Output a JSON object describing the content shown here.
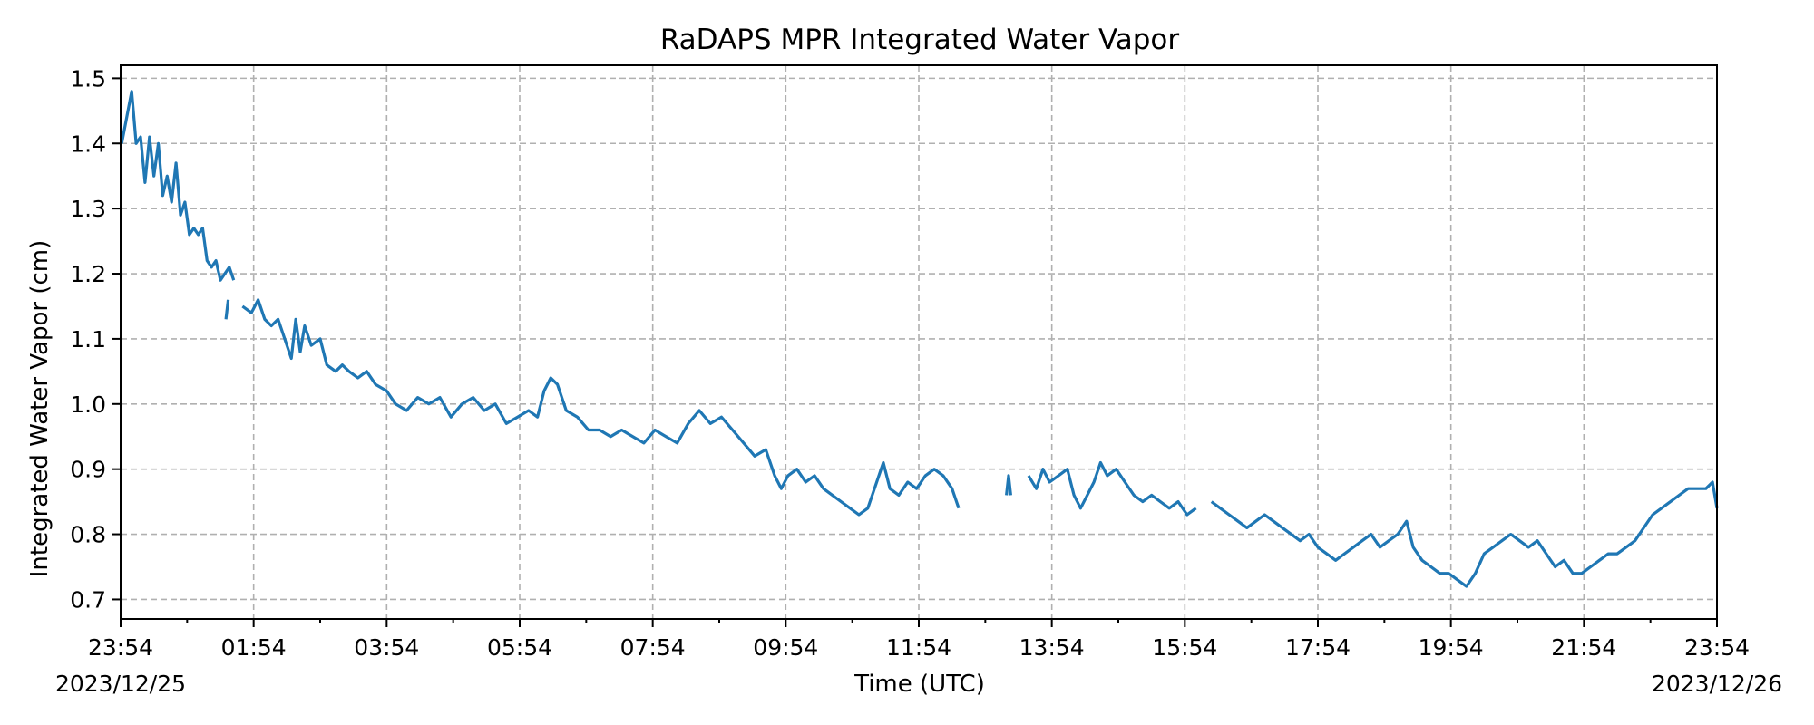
{
  "chart_data": {
    "type": "line",
    "title": "RaDAPS MPR Integrated Water Vapor",
    "xlabel": "Time (UTC)",
    "ylabel": "Integrated Water Vapor (cm)",
    "x_range": [
      "2023-12-25T23:54",
      "2023-12-26T23:54"
    ],
    "ylim": [
      0.67,
      1.52
    ],
    "grid": true,
    "line_color": "#1f77b4",
    "x_ticks": [
      {
        "label": "23:54",
        "sublabel": "2023/12/25",
        "t": "2023-12-25T23:54"
      },
      {
        "label": "01:54",
        "t": "2023-12-26T01:54"
      },
      {
        "label": "03:54",
        "t": "2023-12-26T03:54"
      },
      {
        "label": "05:54",
        "t": "2023-12-26T05:54"
      },
      {
        "label": "07:54",
        "t": "2023-12-26T07:54"
      },
      {
        "label": "09:54",
        "t": "2023-12-26T09:54"
      },
      {
        "label": "11:54",
        "t": "2023-12-26T11:54"
      },
      {
        "label": "13:54",
        "t": "2023-12-26T13:54"
      },
      {
        "label": "15:54",
        "t": "2023-12-26T15:54"
      },
      {
        "label": "17:54",
        "t": "2023-12-26T17:54"
      },
      {
        "label": "19:54",
        "t": "2023-12-26T19:54"
      },
      {
        "label": "21:54",
        "t": "2023-12-26T21:54"
      },
      {
        "label": "23:54",
        "sublabel": "2023/12/26",
        "t": "2023-12-26T23:54"
      }
    ],
    "y_ticks": [
      {
        "label": "0.7",
        "value": 0.7
      },
      {
        "label": "0.8",
        "value": 0.8
      },
      {
        "label": "0.9",
        "value": 0.9
      },
      {
        "label": "1.0",
        "value": 1.0
      },
      {
        "label": "1.1",
        "value": 1.1
      },
      {
        "label": "1.2",
        "value": 1.2
      },
      {
        "label": "1.3",
        "value": 1.3
      },
      {
        "label": "1.4",
        "value": 1.4
      },
      {
        "label": "1.5",
        "value": 1.5
      }
    ],
    "segments": [
      {
        "points": [
          [
            "2023-12-25T23:55",
            1.4
          ],
          [
            "2023-12-25T24:04",
            1.48
          ],
          [
            "2023-12-25T24:08",
            1.4
          ],
          [
            "2023-12-25T24:12",
            1.41
          ],
          [
            "2023-12-25T24:16",
            1.34
          ],
          [
            "2023-12-25T24:20",
            1.41
          ],
          [
            "2023-12-25T24:24",
            1.35
          ],
          [
            "2023-12-25T24:28",
            1.4
          ],
          [
            "2023-12-25T24:32",
            1.32
          ],
          [
            "2023-12-25T24:36",
            1.35
          ],
          [
            "2023-12-25T24:40",
            1.31
          ],
          [
            "2023-12-25T24:44",
            1.37
          ],
          [
            "2023-12-25T24:48",
            1.29
          ],
          [
            "2023-12-25T24:52",
            1.31
          ],
          [
            "2023-12-25T24:56",
            1.26
          ],
          [
            "2023-12-25T25:00",
            1.27
          ],
          [
            "2023-12-25T25:04",
            1.26
          ],
          [
            "2023-12-25T25:08",
            1.27
          ],
          [
            "2023-12-25T25:12",
            1.22
          ],
          [
            "2023-12-25T25:16",
            1.21
          ],
          [
            "2023-12-25T25:20",
            1.22
          ],
          [
            "2023-12-25T25:24",
            1.19
          ],
          [
            "2023-12-25T25:28",
            1.2
          ],
          [
            "2023-12-25T25:32",
            1.21
          ],
          [
            "2023-12-25T25:36",
            1.19
          ]
        ]
      },
      {
        "points": [
          [
            "2023-12-26T01:29",
            1.13
          ],
          [
            "2023-12-26T01:31",
            1.16
          ]
        ]
      },
      {
        "points": [
          [
            "2023-12-26T01:44",
            1.15
          ],
          [
            "2023-12-26T01:52",
            1.14
          ],
          [
            "2023-12-26T01:58",
            1.16
          ],
          [
            "2023-12-26T02:04",
            1.13
          ],
          [
            "2023-12-26T02:10",
            1.12
          ],
          [
            "2023-12-26T02:16",
            1.13
          ],
          [
            "2023-12-26T02:22",
            1.1
          ],
          [
            "2023-12-26T02:28",
            1.07
          ],
          [
            "2023-12-26T02:32",
            1.13
          ],
          [
            "2023-12-26T02:36",
            1.08
          ],
          [
            "2023-12-26T02:40",
            1.12
          ],
          [
            "2023-12-26T02:46",
            1.09
          ],
          [
            "2023-12-26T02:54",
            1.1
          ],
          [
            "2023-12-26T03:00",
            1.06
          ],
          [
            "2023-12-26T03:08",
            1.05
          ],
          [
            "2023-12-26T03:14",
            1.06
          ],
          [
            "2023-12-26T03:20",
            1.05
          ],
          [
            "2023-12-26T03:28",
            1.04
          ],
          [
            "2023-12-26T03:36",
            1.05
          ],
          [
            "2023-12-26T03:44",
            1.03
          ],
          [
            "2023-12-26T03:54",
            1.02
          ],
          [
            "2023-12-26T04:02",
            1.0
          ],
          [
            "2023-12-26T04:12",
            0.99
          ],
          [
            "2023-12-26T04:22",
            1.01
          ],
          [
            "2023-12-26T04:32",
            1.0
          ],
          [
            "2023-12-26T04:42",
            1.01
          ],
          [
            "2023-12-26T04:52",
            0.98
          ],
          [
            "2023-12-26T05:02",
            1.0
          ],
          [
            "2023-12-26T05:12",
            1.01
          ],
          [
            "2023-12-26T05:22",
            0.99
          ],
          [
            "2023-12-26T05:32",
            1.0
          ],
          [
            "2023-12-26T05:42",
            0.97
          ],
          [
            "2023-12-26T05:52",
            0.98
          ],
          [
            "2023-12-26T06:02",
            0.99
          ],
          [
            "2023-12-26T06:10",
            0.98
          ],
          [
            "2023-12-26T06:16",
            1.02
          ],
          [
            "2023-12-26T06:22",
            1.04
          ],
          [
            "2023-12-26T06:28",
            1.03
          ],
          [
            "2023-12-26T06:36",
            0.99
          ],
          [
            "2023-12-26T06:46",
            0.98
          ],
          [
            "2023-12-26T06:56",
            0.96
          ],
          [
            "2023-12-26T07:06",
            0.96
          ],
          [
            "2023-12-26T07:16",
            0.95
          ],
          [
            "2023-12-26T07:26",
            0.96
          ],
          [
            "2023-12-26T07:36",
            0.95
          ],
          [
            "2023-12-26T07:46",
            0.94
          ],
          [
            "2023-12-26T07:56",
            0.96
          ],
          [
            "2023-12-26T08:06",
            0.95
          ],
          [
            "2023-12-26T08:16",
            0.94
          ],
          [
            "2023-12-26T08:26",
            0.97
          ],
          [
            "2023-12-26T08:36",
            0.99
          ],
          [
            "2023-12-26T08:46",
            0.97
          ],
          [
            "2023-12-26T08:56",
            0.98
          ],
          [
            "2023-12-26T09:06",
            0.96
          ],
          [
            "2023-12-26T09:16",
            0.94
          ],
          [
            "2023-12-26T09:26",
            0.92
          ],
          [
            "2023-12-26T09:36",
            0.93
          ],
          [
            "2023-12-26T09:44",
            0.89
          ],
          [
            "2023-12-26T09:50",
            0.87
          ],
          [
            "2023-12-26T09:56",
            0.89
          ],
          [
            "2023-12-26T10:04",
            0.9
          ],
          [
            "2023-12-26T10:12",
            0.88
          ],
          [
            "2023-12-26T10:20",
            0.89
          ],
          [
            "2023-12-26T10:28",
            0.87
          ],
          [
            "2023-12-26T10:36",
            0.86
          ],
          [
            "2023-12-26T10:44",
            0.85
          ],
          [
            "2023-12-26T10:52",
            0.84
          ],
          [
            "2023-12-26T11:00",
            0.83
          ],
          [
            "2023-12-26T11:08",
            0.84
          ],
          [
            "2023-12-26T11:16",
            0.88
          ],
          [
            "2023-12-26T11:22",
            0.91
          ],
          [
            "2023-12-26T11:28",
            0.87
          ],
          [
            "2023-12-26T11:36",
            0.86
          ],
          [
            "2023-12-26T11:44",
            0.88
          ],
          [
            "2023-12-26T11:52",
            0.87
          ],
          [
            "2023-12-26T12:00",
            0.89
          ],
          [
            "2023-12-26T12:08",
            0.9
          ],
          [
            "2023-12-26T12:16",
            0.89
          ],
          [
            "2023-12-26T12:24",
            0.87
          ],
          [
            "2023-12-26T12:30",
            0.84
          ]
        ]
      },
      {
        "points": [
          [
            "2023-12-26T13:13",
            0.86
          ],
          [
            "2023-12-26T13:15",
            0.89
          ],
          [
            "2023-12-26T13:17",
            0.86
          ]
        ]
      },
      {
        "points": [
          [
            "2023-12-26T13:33",
            0.89
          ],
          [
            "2023-12-26T13:40",
            0.87
          ],
          [
            "2023-12-26T13:46",
            0.9
          ],
          [
            "2023-12-26T13:52",
            0.88
          ],
          [
            "2023-12-26T14:00",
            0.89
          ],
          [
            "2023-12-26T14:08",
            0.9
          ],
          [
            "2023-12-26T14:14",
            0.86
          ],
          [
            "2023-12-26T14:20",
            0.84
          ],
          [
            "2023-12-26T14:26",
            0.86
          ],
          [
            "2023-12-26T14:32",
            0.88
          ],
          [
            "2023-12-26T14:38",
            0.91
          ],
          [
            "2023-12-26T14:44",
            0.89
          ],
          [
            "2023-12-26T14:52",
            0.9
          ],
          [
            "2023-12-26T15:00",
            0.88
          ],
          [
            "2023-12-26T15:08",
            0.86
          ],
          [
            "2023-12-26T15:16",
            0.85
          ],
          [
            "2023-12-26T15:24",
            0.86
          ],
          [
            "2023-12-26T15:32",
            0.85
          ],
          [
            "2023-12-26T15:40",
            0.84
          ],
          [
            "2023-12-26T15:48",
            0.85
          ],
          [
            "2023-12-26T15:56",
            0.83
          ],
          [
            "2023-12-26T16:04",
            0.84
          ]
        ]
      },
      {
        "points": [
          [
            "2023-12-26T16:18",
            0.85
          ],
          [
            "2023-12-26T16:26",
            0.84
          ],
          [
            "2023-12-26T16:34",
            0.83
          ],
          [
            "2023-12-26T16:42",
            0.82
          ],
          [
            "2023-12-26T16:50",
            0.81
          ],
          [
            "2023-12-26T16:58",
            0.82
          ],
          [
            "2023-12-26T17:06",
            0.83
          ],
          [
            "2023-12-26T17:14",
            0.82
          ],
          [
            "2023-12-26T17:22",
            0.81
          ],
          [
            "2023-12-26T17:30",
            0.8
          ],
          [
            "2023-12-26T17:38",
            0.79
          ],
          [
            "2023-12-26T17:46",
            0.8
          ],
          [
            "2023-12-26T17:54",
            0.78
          ],
          [
            "2023-12-26T18:02",
            0.77
          ],
          [
            "2023-12-26T18:10",
            0.76
          ],
          [
            "2023-12-26T18:18",
            0.77
          ],
          [
            "2023-12-26T18:26",
            0.78
          ],
          [
            "2023-12-26T18:34",
            0.79
          ],
          [
            "2023-12-26T18:42",
            0.8
          ],
          [
            "2023-12-26T18:50",
            0.78
          ],
          [
            "2023-12-26T18:58",
            0.79
          ],
          [
            "2023-12-26T19:06",
            0.8
          ],
          [
            "2023-12-26T19:14",
            0.82
          ],
          [
            "2023-12-26T19:20",
            0.78
          ],
          [
            "2023-12-26T19:28",
            0.76
          ],
          [
            "2023-12-26T19:36",
            0.75
          ],
          [
            "2023-12-26T19:44",
            0.74
          ],
          [
            "2023-12-26T19:52",
            0.74
          ],
          [
            "2023-12-26T20:00",
            0.73
          ],
          [
            "2023-12-26T20:08",
            0.72
          ],
          [
            "2023-12-26T20:16",
            0.74
          ],
          [
            "2023-12-26T20:24",
            0.77
          ],
          [
            "2023-12-26T20:32",
            0.78
          ],
          [
            "2023-12-26T20:40",
            0.79
          ],
          [
            "2023-12-26T20:48",
            0.8
          ],
          [
            "2023-12-26T20:56",
            0.79
          ],
          [
            "2023-12-26T21:04",
            0.78
          ],
          [
            "2023-12-26T21:12",
            0.79
          ],
          [
            "2023-12-26T21:20",
            0.77
          ],
          [
            "2023-12-26T21:28",
            0.75
          ],
          [
            "2023-12-26T21:36",
            0.76
          ],
          [
            "2023-12-26T21:44",
            0.74
          ],
          [
            "2023-12-26T21:52",
            0.74
          ],
          [
            "2023-12-26T22:00",
            0.75
          ],
          [
            "2023-12-26T22:08",
            0.76
          ],
          [
            "2023-12-26T22:16",
            0.77
          ],
          [
            "2023-12-26T22:24",
            0.77
          ],
          [
            "2023-12-26T22:32",
            0.78
          ],
          [
            "2023-12-26T22:40",
            0.79
          ],
          [
            "2023-12-26T22:48",
            0.81
          ],
          [
            "2023-12-26T22:56",
            0.83
          ],
          [
            "2023-12-26T23:04",
            0.84
          ],
          [
            "2023-12-26T23:12",
            0.85
          ],
          [
            "2023-12-26T23:20",
            0.86
          ],
          [
            "2023-12-26T23:28",
            0.87
          ],
          [
            "2023-12-26T23:36",
            0.87
          ],
          [
            "2023-12-26T23:44",
            0.87
          ],
          [
            "2023-12-26T23:50",
            0.88
          ],
          [
            "2023-12-26T23:54",
            0.84
          ]
        ]
      }
    ]
  }
}
